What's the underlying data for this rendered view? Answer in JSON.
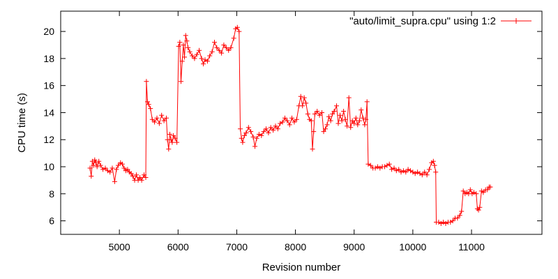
{
  "chart_data": {
    "type": "line",
    "title": "",
    "xlabel": "Revision number",
    "ylabel": "CPU time (s)",
    "xlim": [
      4000,
      12200
    ],
    "ylim": [
      5,
      21.5
    ],
    "x_ticks": [
      5000,
      6000,
      7000,
      8000,
      9000,
      10000,
      11000
    ],
    "y_ticks": [
      6,
      8,
      10,
      12,
      14,
      16,
      18,
      20
    ],
    "grid": false,
    "legend_position": "top-right",
    "color": "#ff0000",
    "series": [
      {
        "name": "\"auto/limit_supra.cpu\" using 1:2",
        "points": [
          [
            4500,
            9.9
          ],
          [
            4520,
            9.3
          ],
          [
            4540,
            10.4
          ],
          [
            4560,
            10.1
          ],
          [
            4580,
            10.5
          ],
          [
            4600,
            10.3
          ],
          [
            4620,
            10.0
          ],
          [
            4650,
            10.4
          ],
          [
            4680,
            10.1
          ],
          [
            4720,
            9.8
          ],
          [
            4760,
            9.9
          ],
          [
            4800,
            9.7
          ],
          [
            4840,
            9.6
          ],
          [
            4880,
            9.9
          ],
          [
            4920,
            8.9
          ],
          [
            4950,
            9.8
          ],
          [
            4980,
            10.1
          ],
          [
            5020,
            10.3
          ],
          [
            5050,
            10.2
          ],
          [
            5080,
            9.9
          ],
          [
            5110,
            9.7
          ],
          [
            5140,
            9.8
          ],
          [
            5170,
            9.6
          ],
          [
            5200,
            9.5
          ],
          [
            5230,
            9.3
          ],
          [
            5260,
            9.0
          ],
          [
            5290,
            9.4
          ],
          [
            5320,
            9.0
          ],
          [
            5350,
            9.2
          ],
          [
            5380,
            9.0
          ],
          [
            5420,
            9.4
          ],
          [
            5450,
            9.2
          ],
          [
            5460,
            16.3
          ],
          [
            5480,
            14.8
          ],
          [
            5500,
            14.6
          ],
          [
            5530,
            14.3
          ],
          [
            5560,
            13.5
          ],
          [
            5600,
            13.3
          ],
          [
            5640,
            13.6
          ],
          [
            5680,
            13.2
          ],
          [
            5720,
            13.8
          ],
          [
            5760,
            13.4
          ],
          [
            5800,
            13.6
          ],
          [
            5820,
            12.0
          ],
          [
            5840,
            11.3
          ],
          [
            5860,
            12.4
          ],
          [
            5880,
            12.0
          ],
          [
            5900,
            11.8
          ],
          [
            5920,
            12.3
          ],
          [
            5950,
            12.1
          ],
          [
            5980,
            11.8
          ],
          [
            6010,
            18.9
          ],
          [
            6030,
            19.2
          ],
          [
            6050,
            16.3
          ],
          [
            6070,
            17.8
          ],
          [
            6090,
            19.0
          ],
          [
            6110,
            18.1
          ],
          [
            6130,
            19.7
          ],
          [
            6150,
            19.3
          ],
          [
            6170,
            18.8
          ],
          [
            6200,
            18.5
          ],
          [
            6240,
            18.2
          ],
          [
            6280,
            18.0
          ],
          [
            6320,
            18.3
          ],
          [
            6360,
            18.6
          ],
          [
            6400,
            18.0
          ],
          [
            6430,
            17.6
          ],
          [
            6460,
            17.9
          ],
          [
            6500,
            17.8
          ],
          [
            6540,
            18.2
          ],
          [
            6580,
            18.5
          ],
          [
            6620,
            19.2
          ],
          [
            6660,
            18.8
          ],
          [
            6700,
            18.6
          ],
          [
            6740,
            18.4
          ],
          [
            6780,
            19.0
          ],
          [
            6820,
            18.8
          ],
          [
            6860,
            18.6
          ],
          [
            6900,
            18.8
          ],
          [
            6950,
            19.5
          ],
          [
            6980,
            20.2
          ],
          [
            7010,
            20.3
          ],
          [
            7040,
            20.0
          ],
          [
            7060,
            12.8
          ],
          [
            7080,
            12.1
          ],
          [
            7100,
            11.8
          ],
          [
            7130,
            12.3
          ],
          [
            7160,
            12.5
          ],
          [
            7200,
            12.9
          ],
          [
            7240,
            12.6
          ],
          [
            7280,
            12.2
          ],
          [
            7310,
            11.5
          ],
          [
            7340,
            12.1
          ],
          [
            7380,
            12.4
          ],
          [
            7420,
            12.3
          ],
          [
            7460,
            12.6
          ],
          [
            7500,
            12.8
          ],
          [
            7540,
            12.5
          ],
          [
            7580,
            12.9
          ],
          [
            7620,
            12.7
          ],
          [
            7660,
            13.0
          ],
          [
            7700,
            12.8
          ],
          [
            7740,
            13.2
          ],
          [
            7780,
            13.3
          ],
          [
            7820,
            13.6
          ],
          [
            7860,
            13.4
          ],
          [
            7900,
            13.1
          ],
          [
            7940,
            13.6
          ],
          [
            7980,
            13.3
          ],
          [
            8020,
            13.5
          ],
          [
            8060,
            14.5
          ],
          [
            8090,
            15.2
          ],
          [
            8120,
            14.5
          ],
          [
            8150,
            15.1
          ],
          [
            8180,
            14.7
          ],
          [
            8210,
            13.9
          ],
          [
            8240,
            13.5
          ],
          [
            8270,
            13.4
          ],
          [
            8290,
            11.3
          ],
          [
            8310,
            12.6
          ],
          [
            8330,
            13.9
          ],
          [
            8370,
            14.1
          ],
          [
            8410,
            13.8
          ],
          [
            8450,
            14.0
          ],
          [
            8480,
            12.6
          ],
          [
            8510,
            12.8
          ],
          [
            8540,
            13.1
          ],
          [
            8570,
            13.7
          ],
          [
            8600,
            13.4
          ],
          [
            8630,
            13.9
          ],
          [
            8660,
            14.1
          ],
          [
            8700,
            14.5
          ],
          [
            8730,
            13.2
          ],
          [
            8760,
            13.8
          ],
          [
            8790,
            13.4
          ],
          [
            8820,
            14.1
          ],
          [
            8850,
            13.5
          ],
          [
            8880,
            13.0
          ],
          [
            8910,
            15.1
          ],
          [
            8940,
            12.9
          ],
          [
            8970,
            13.4
          ],
          [
            9000,
            13.2
          ],
          [
            9030,
            13.6
          ],
          [
            9060,
            13.1
          ],
          [
            9090,
            13.4
          ],
          [
            9120,
            14.2
          ],
          [
            9150,
            13.6
          ],
          [
            9180,
            13.1
          ],
          [
            9200,
            13.5
          ],
          [
            9220,
            14.8
          ],
          [
            9240,
            10.2
          ],
          [
            9280,
            10.1
          ],
          [
            9320,
            9.9
          ],
          [
            9360,
            9.9
          ],
          [
            9400,
            10.0
          ],
          [
            9440,
            9.9
          ],
          [
            9480,
            10.0
          ],
          [
            9520,
            10.0
          ],
          [
            9560,
            10.1
          ],
          [
            9600,
            10.2
          ],
          [
            9640,
            9.8
          ],
          [
            9680,
            9.9
          ],
          [
            9720,
            9.7
          ],
          [
            9760,
            9.8
          ],
          [
            9800,
            9.6
          ],
          [
            9840,
            9.7
          ],
          [
            9880,
            9.6
          ],
          [
            9920,
            9.8
          ],
          [
            9960,
            9.7
          ],
          [
            10000,
            9.6
          ],
          [
            10040,
            9.5
          ],
          [
            10080,
            9.6
          ],
          [
            10120,
            9.5
          ],
          [
            10160,
            9.4
          ],
          [
            10200,
            9.6
          ],
          [
            10240,
            9.4
          ],
          [
            10280,
            9.8
          ],
          [
            10320,
            10.3
          ],
          [
            10350,
            10.4
          ],
          [
            10370,
            10.1
          ],
          [
            10390,
            9.6
          ],
          [
            10400,
            5.9
          ],
          [
            10440,
            5.9
          ],
          [
            10480,
            5.8
          ],
          [
            10520,
            5.9
          ],
          [
            10560,
            5.8
          ],
          [
            10600,
            5.9
          ],
          [
            10640,
            5.9
          ],
          [
            10680,
            6.0
          ],
          [
            10720,
            6.2
          ],
          [
            10760,
            6.2
          ],
          [
            10800,
            6.4
          ],
          [
            10830,
            6.7
          ],
          [
            10860,
            8.2
          ],
          [
            10890,
            8.0
          ],
          [
            10920,
            8.1
          ],
          [
            10950,
            8.0
          ],
          [
            10980,
            8.3
          ],
          [
            11010,
            8.0
          ],
          [
            11040,
            8.1
          ],
          [
            11080,
            8.0
          ],
          [
            11100,
            6.9
          ],
          [
            11120,
            6.8
          ],
          [
            11140,
            7.0
          ],
          [
            11170,
            8.2
          ],
          [
            11200,
            8.1
          ],
          [
            11240,
            8.3
          ],
          [
            11270,
            8.3
          ],
          [
            11300,
            8.5
          ],
          [
            11320,
            8.5
          ]
        ]
      }
    ]
  }
}
